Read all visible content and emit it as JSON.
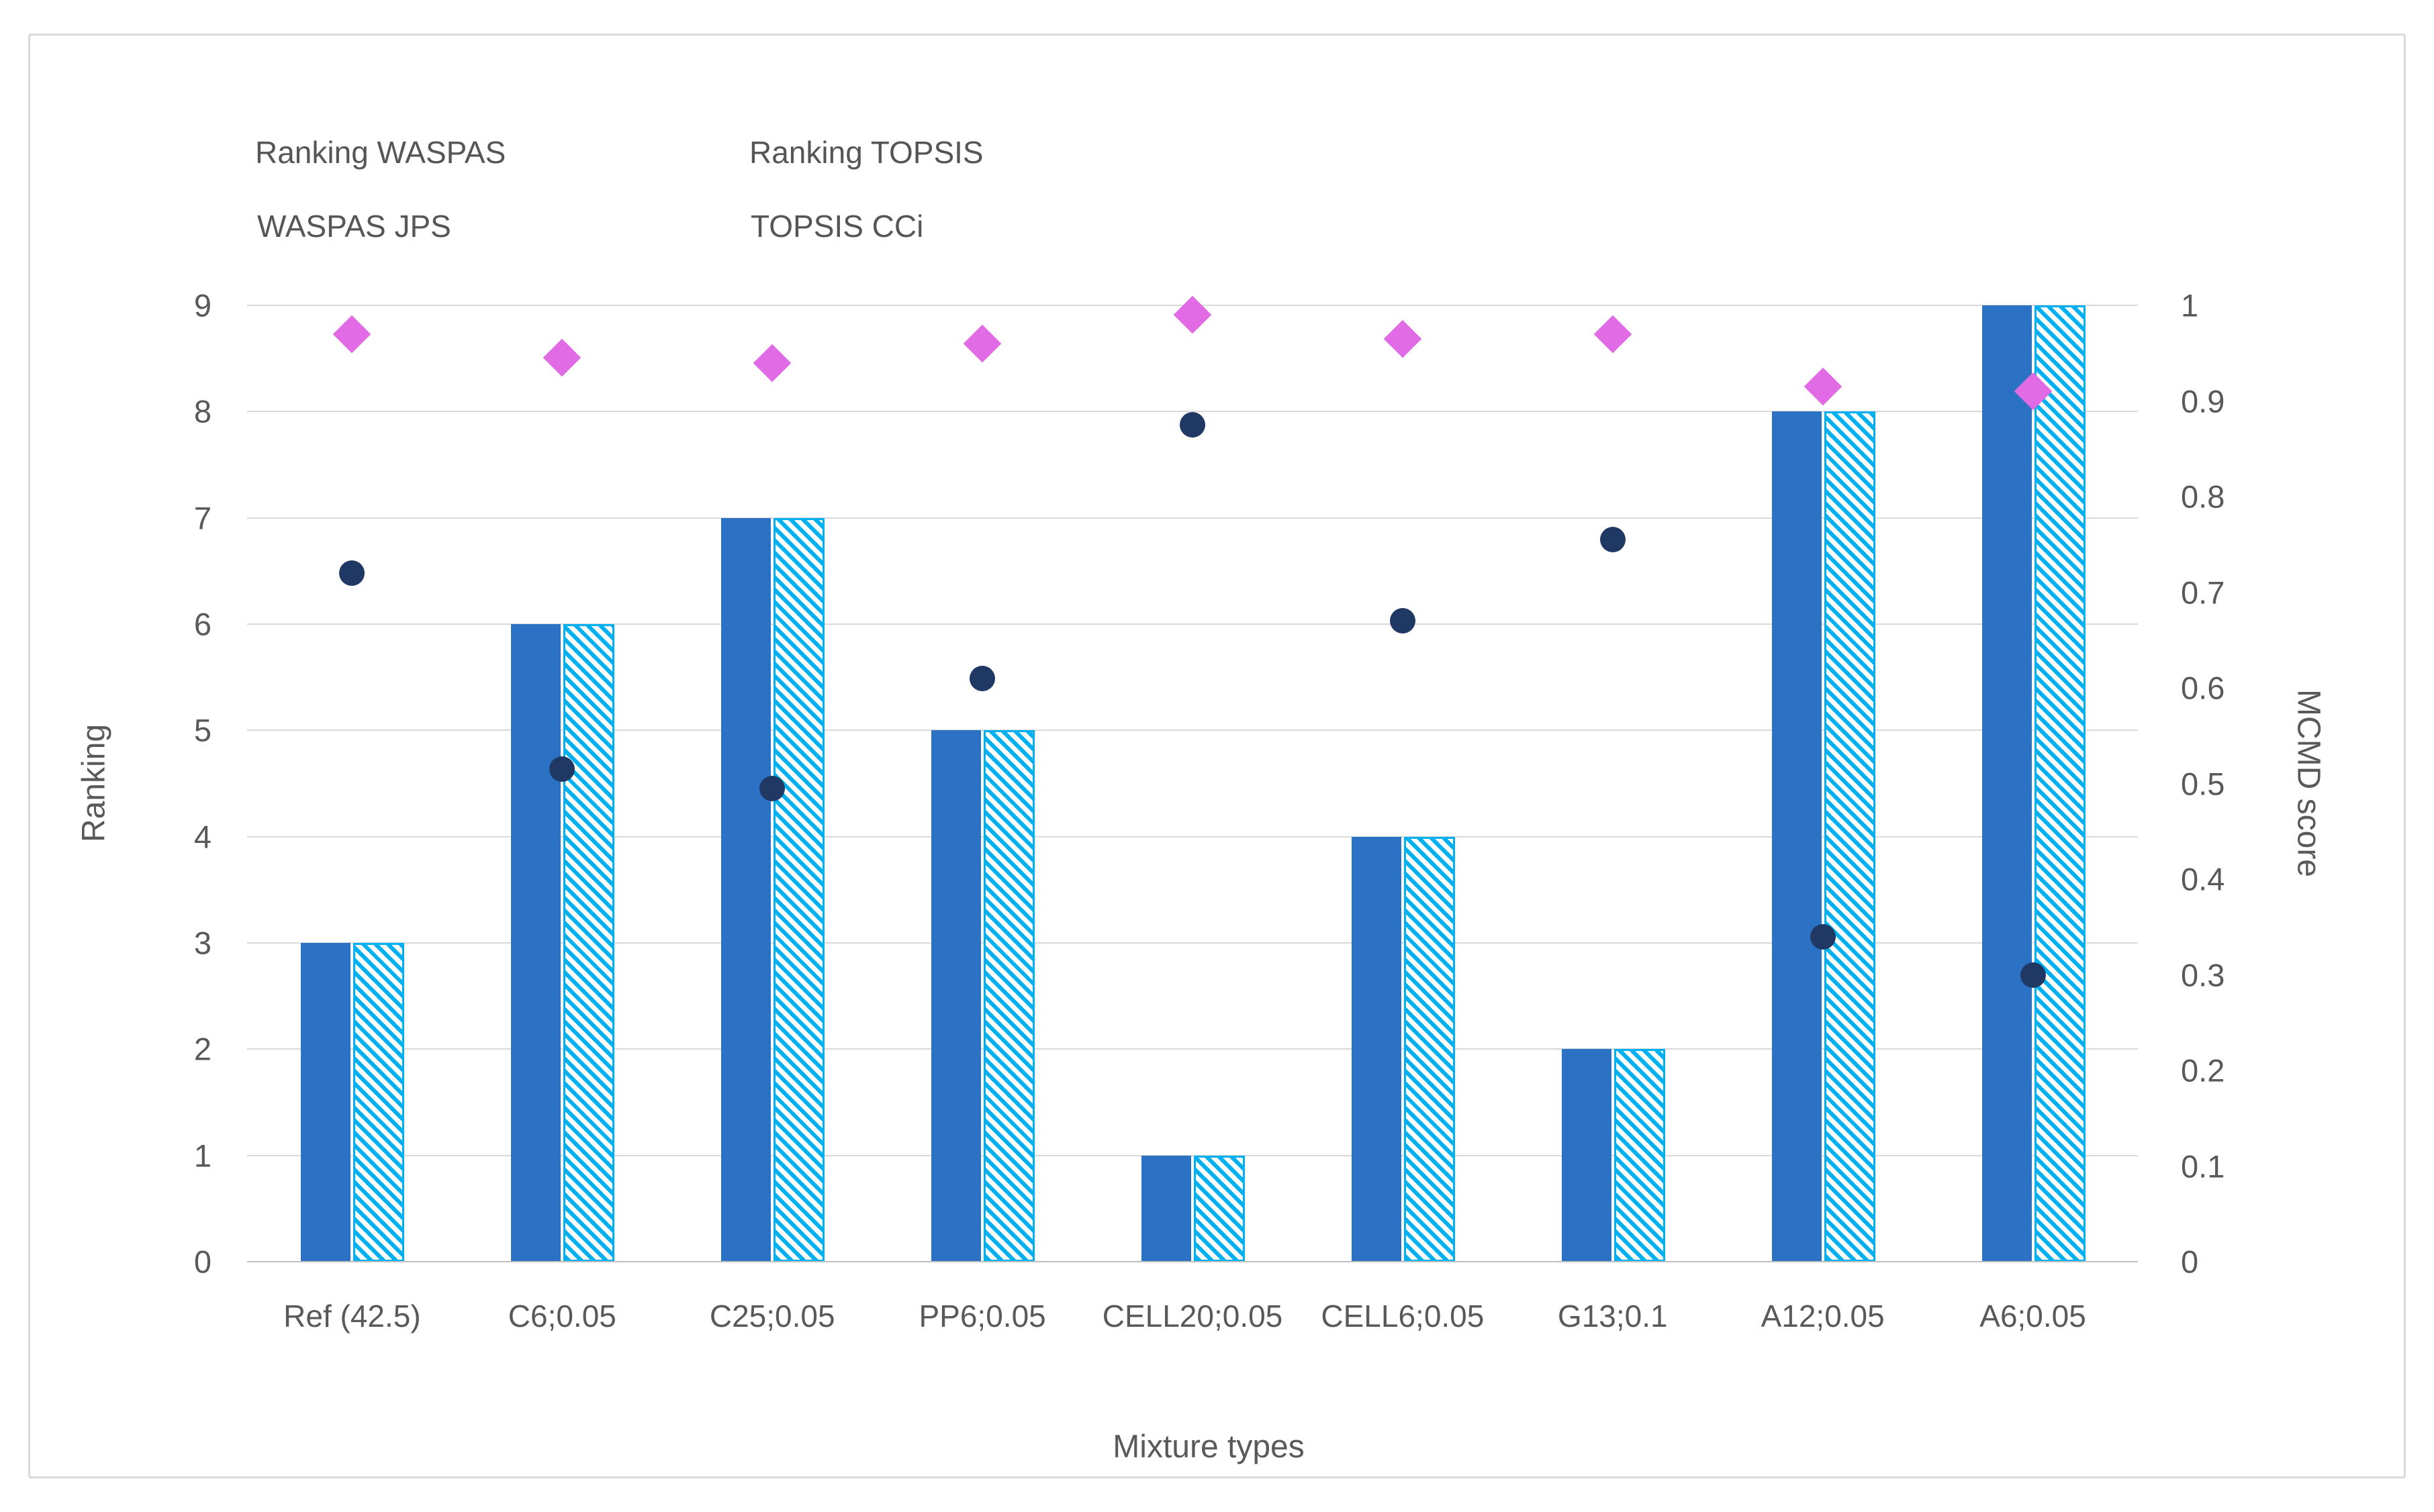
{
  "figure": {
    "background": "#ffffff",
    "border_color": "#d9d9d9"
  },
  "legend": {
    "items": [
      {
        "label": "Ranking WASPAS",
        "marker": "solid-square",
        "color": "#2b72c4"
      },
      {
        "label": "Ranking TOPSIS",
        "marker": "hatched-square",
        "color": "#00b0f0"
      },
      {
        "label": "WASPAS JPS",
        "marker": "diamond",
        "color": "#e16be4"
      },
      {
        "label": "TOPSIS CCi",
        "marker": "circle",
        "color": "#1f3864"
      }
    ]
  },
  "chart_data": {
    "type": "bar",
    "subtype": "combo-bar-scatter-dual-axis",
    "categories": [
      "Ref (42.5)",
      "C6;0.05",
      "C25;0.05",
      "PP6;0.05",
      "CELL20;0.05",
      "CELL6;0.05",
      "G13;0.1",
      "A12;0.05",
      "A6;0.05"
    ],
    "series": [
      {
        "name": "Ranking WASPAS",
        "type": "bar",
        "style": "solid",
        "axis": "left",
        "color": "#2b72c4",
        "values": [
          3,
          6,
          7,
          5,
          1,
          4,
          2,
          8,
          9
        ]
      },
      {
        "name": "Ranking TOPSIS",
        "type": "bar",
        "style": "hatched",
        "axis": "left",
        "color": "#00b0f0",
        "values": [
          3,
          6,
          7,
          5,
          1,
          4,
          2,
          8,
          9
        ]
      },
      {
        "name": "WASPAS JPS",
        "type": "scatter",
        "marker": "diamond",
        "axis": "right",
        "color": "#e16be4",
        "values": [
          0.97,
          0.945,
          0.94,
          0.96,
          0.99,
          0.965,
          0.97,
          0.915,
          0.91
        ]
      },
      {
        "name": "TOPSIS CCi",
        "type": "scatter",
        "marker": "circle",
        "axis": "right",
        "color": "#1f3864",
        "values": [
          0.72,
          0.515,
          0.495,
          0.61,
          0.875,
          0.67,
          0.755,
          0.34,
          0.3
        ]
      }
    ],
    "left_axis": {
      "title": "Ranking",
      "min": 0,
      "max": 9,
      "tick_labels": [
        "0",
        "1",
        "2",
        "3",
        "4",
        "5",
        "6",
        "7",
        "8",
        "9"
      ]
    },
    "right_axis": {
      "title": "MCMD score",
      "min": 0,
      "max": 1,
      "tick_labels": [
        "0",
        "0.1",
        "0.2",
        "0.3",
        "0.4",
        "0.5",
        "0.6",
        "0.7",
        "0.8",
        "0.9",
        "1"
      ]
    },
    "x_axis": {
      "title": "Mixture types"
    },
    "grid": "horizontal",
    "gridline_color": "#d9d9d9",
    "axisline_color": "#bfbfbf",
    "legend_position": "top-left"
  }
}
